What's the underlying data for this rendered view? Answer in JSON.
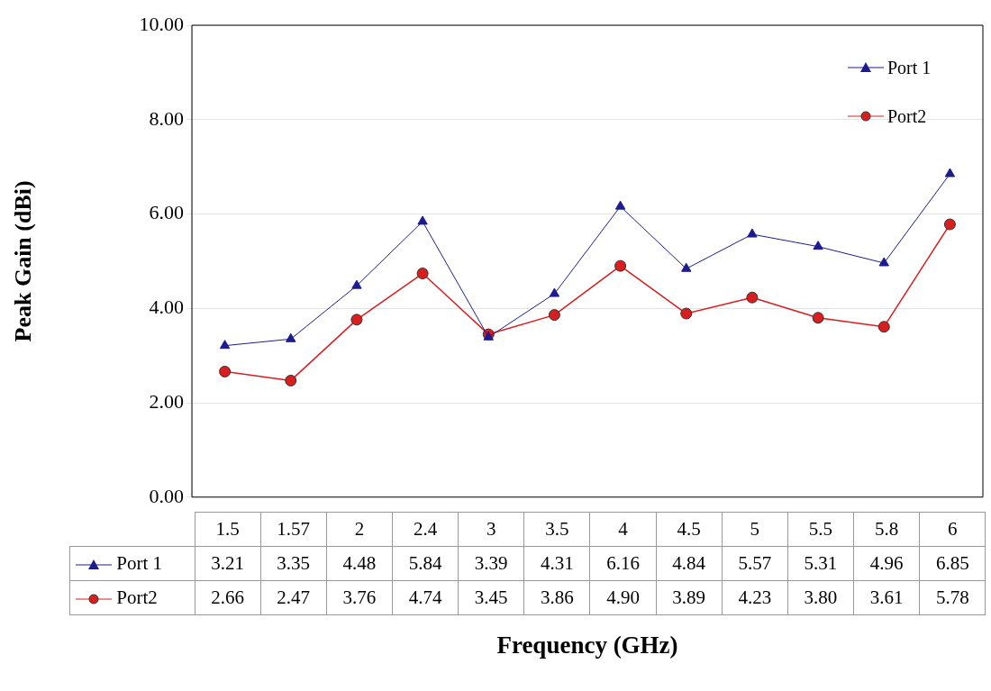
{
  "chart_data": {
    "type": "line",
    "xlabel": "Frequency (GHz)",
    "ylabel": "Peak Gain (dBi)",
    "categories": [
      "1.5",
      "1.57",
      "2",
      "2.4",
      "3",
      "3.5",
      "4",
      "4.5",
      "5",
      "5.5",
      "5.8",
      "6"
    ],
    "series": [
      {
        "name": "Port 1",
        "color": "#1c1c8f",
        "marker": "triangle",
        "values": [
          3.21,
          3.35,
          4.48,
          5.84,
          3.39,
          4.31,
          6.16,
          4.84,
          5.57,
          5.31,
          4.96,
          6.85
        ],
        "value_labels": [
          "3.21",
          "3.35",
          "4.48",
          "5.84",
          "3.39",
          "4.31",
          "6.16",
          "4.84",
          "5.57",
          "5.31",
          "4.96",
          "6.85"
        ]
      },
      {
        "name": "Port2",
        "color": "#d81e1e",
        "marker": "circle",
        "values": [
          2.66,
          2.47,
          3.76,
          4.74,
          3.45,
          3.86,
          4.9,
          3.89,
          4.23,
          3.8,
          3.61,
          5.78
        ],
        "value_labels": [
          "2.66",
          "2.47",
          "3.76",
          "4.74",
          "3.45",
          "3.86",
          "4.90",
          "3.89",
          "4.23",
          "3.80",
          "3.61",
          "5.78"
        ]
      }
    ],
    "ylim": [
      0,
      10
    ],
    "yticks": [
      {
        "value": 0,
        "label": "0.00"
      },
      {
        "value": 2,
        "label": "2.00"
      },
      {
        "value": 4,
        "label": "4.00"
      },
      {
        "value": 6,
        "label": "6.00"
      },
      {
        "value": 8,
        "label": "8.00"
      },
      {
        "value": 10,
        "label": "10.00"
      }
    ],
    "grid": "y",
    "legend": "top right"
  }
}
